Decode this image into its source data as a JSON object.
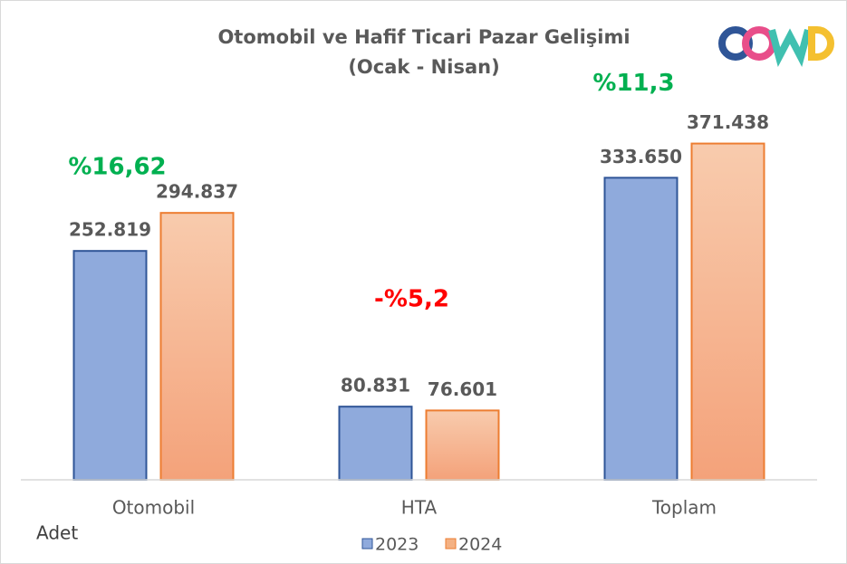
{
  "chart_data": {
    "type": "bar",
    "title": [
      "Otomobil ve Hafif Ticari Pazar Gelişimi",
      "(Ocak - Nisan)"
    ],
    "y_label": "Adet",
    "categories": [
      "Otomobil",
      "HTA",
      "Toplam"
    ],
    "series": [
      {
        "name": "2023",
        "color": "#8faadc",
        "values": [
          252819,
          80831,
          333650
        ],
        "value_labels": [
          "252.819",
          "80.831",
          "333.650"
        ]
      },
      {
        "name": "2024",
        "color": "#f4b183",
        "values": [
          294837,
          76601,
          371438
        ],
        "value_labels": [
          "294.837",
          "76.601",
          "371.438"
        ]
      }
    ],
    "ylim": [
      0,
      430000
    ],
    "annotations": [
      {
        "text": "%16,62",
        "color": "#00b050"
      },
      {
        "text": "-%5,2",
        "color": "#ff0000"
      },
      {
        "text": "%11,3",
        "color": "#00b050"
      }
    ]
  }
}
